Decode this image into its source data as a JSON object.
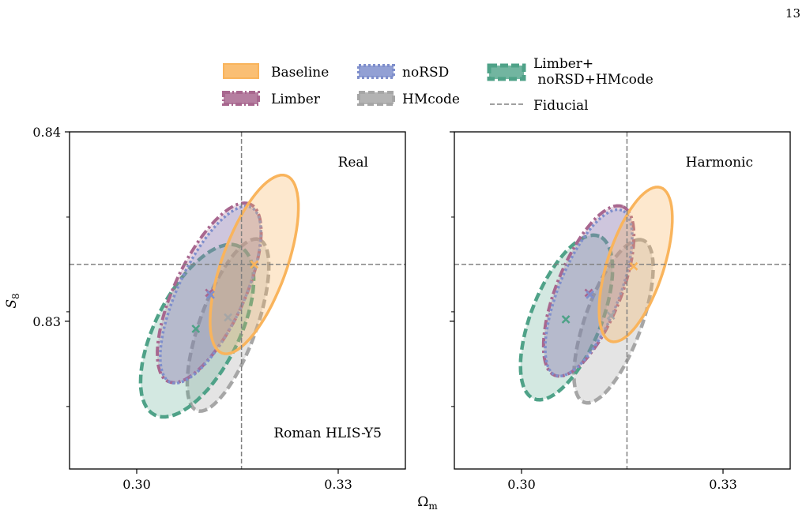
{
  "page_number": "13",
  "legend": {
    "entries": [
      {
        "key": "baseline",
        "label": "Baseline",
        "color": "#F9B45C",
        "style": "solid"
      },
      {
        "key": "limber",
        "label": "Limber",
        "color": "#A8678F",
        "style": "dashdot"
      },
      {
        "key": "norsd",
        "label": "noRSD",
        "color": "#7F8FCC",
        "style": "dotted"
      },
      {
        "key": "hmcode",
        "label": "HMcode",
        "color": "#A6A6A6",
        "style": "dashed"
      },
      {
        "key": "all",
        "label_line1": "Limber+",
        "label_line2": " noRSD+HMcode",
        "color": "#4FA288",
        "style": "dashed"
      },
      {
        "key": "fiducial",
        "label": "Fiducial",
        "color": "#808080",
        "style": "dashed"
      }
    ]
  },
  "axes": {
    "xlabel_main": "Ω",
    "xlabel_sub": "m",
    "ylabel_main": "S",
    "ylabel_sub": "8",
    "xlim": [
      0.29,
      0.34
    ],
    "ylim": [
      0.8222,
      0.84
    ],
    "xticks": [
      {
        "value": 0.3,
        "label": "0.30"
      },
      {
        "value": 0.33,
        "label": "0.33"
      }
    ],
    "yticks": [
      {
        "value": 0.83,
        "label": "0.83"
      },
      {
        "value": 0.84,
        "label": "0.84"
      }
    ],
    "yminor": [
      0.8255,
      0.8305,
      0.8355
    ]
  },
  "chart_data": [
    {
      "type": "scatter",
      "panel": "Real",
      "annotation": "Real",
      "annotation_2": "Roman HLIS-Y5",
      "fiducial": {
        "x": 0.3156,
        "y": 0.833
      },
      "contours": [
        {
          "series": "hmcode",
          "cx": 0.3136,
          "cy": 0.8298,
          "a": 0.0135,
          "b": 0.0042,
          "angle": 70
        },
        {
          "series": "all",
          "cx": 0.309,
          "cy": 0.8295,
          "a": 0.014,
          "b": 0.0062,
          "angle": 63
        },
        {
          "series": "limber",
          "cx": 0.3108,
          "cy": 0.8315,
          "a": 0.0145,
          "b": 0.0052,
          "angle": 65
        },
        {
          "series": "norsd",
          "cx": 0.311,
          "cy": 0.8314,
          "a": 0.0143,
          "b": 0.0049,
          "angle": 65
        },
        {
          "series": "baseline",
          "cx": 0.3175,
          "cy": 0.833,
          "a": 0.014,
          "b": 0.0048,
          "angle": 70
        }
      ],
      "markers": [
        {
          "series": "baseline",
          "x": 0.3175,
          "y": 0.833
        },
        {
          "series": "limber",
          "x": 0.3108,
          "y": 0.8315
        },
        {
          "series": "norsd",
          "x": 0.311,
          "y": 0.8314
        },
        {
          "series": "hmcode",
          "x": 0.3136,
          "y": 0.8302
        },
        {
          "series": "all",
          "x": 0.3088,
          "y": 0.8296
        }
      ]
    },
    {
      "type": "scatter",
      "panel": "Harmonic",
      "annotation": "Harmonic",
      "fiducial": {
        "x": 0.3157,
        "y": 0.833
      },
      "contours": [
        {
          "series": "hmcode",
          "cx": 0.3137,
          "cy": 0.83,
          "a": 0.0128,
          "b": 0.0042,
          "angle": 70
        },
        {
          "series": "all",
          "cx": 0.3067,
          "cy": 0.8302,
          "a": 0.013,
          "b": 0.0052,
          "angle": 68
        },
        {
          "series": "limber",
          "cx": 0.31,
          "cy": 0.8316,
          "a": 0.0135,
          "b": 0.0048,
          "angle": 68
        },
        {
          "series": "norsd",
          "cx": 0.31,
          "cy": 0.8315,
          "a": 0.0132,
          "b": 0.0045,
          "angle": 68
        },
        {
          "series": "baseline",
          "cx": 0.317,
          "cy": 0.833,
          "a": 0.012,
          "b": 0.0042,
          "angle": 72
        }
      ],
      "markers": [
        {
          "series": "baseline",
          "x": 0.3167,
          "y": 0.8329
        },
        {
          "series": "limber",
          "x": 0.31,
          "y": 0.8315
        },
        {
          "series": "norsd",
          "x": 0.3102,
          "y": 0.8314
        },
        {
          "series": "hmcode",
          "x": 0.3133,
          "y": 0.8303
        },
        {
          "series": "all",
          "x": 0.3066,
          "y": 0.8301
        }
      ]
    }
  ]
}
